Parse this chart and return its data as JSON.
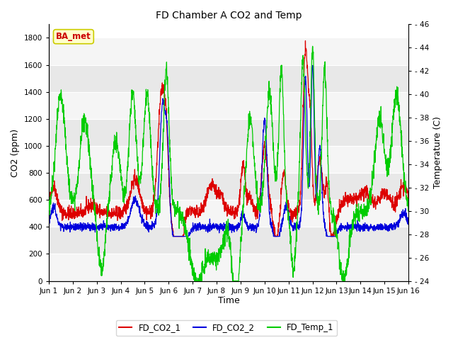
{
  "title": "FD Chamber A CO2 and Temp",
  "xlabel": "Time",
  "ylabel_left": "CO2 (ppm)",
  "ylabel_right": "Temperature (C)",
  "ylim_left": [
    0,
    1900
  ],
  "ylim_right": [
    24,
    46
  ],
  "yticks_left": [
    0,
    200,
    400,
    600,
    800,
    1000,
    1200,
    1400,
    1600,
    1800
  ],
  "yticks_right": [
    24,
    26,
    28,
    30,
    32,
    34,
    36,
    38,
    40,
    42,
    44,
    46
  ],
  "xlim": [
    0,
    15
  ],
  "xtick_positions": [
    0,
    1,
    2,
    3,
    4,
    5,
    6,
    7,
    8,
    9,
    10,
    11,
    12,
    13,
    14,
    15
  ],
  "xtick_labels": [
    "Jun 1",
    "Jun 2",
    "Jun 3",
    "Jun 4",
    "Jun 5",
    "Jun 6",
    "Jun 7",
    "Jun 8",
    "Jun 9",
    "Jun 10",
    "Jun 11",
    "Jun 12",
    "Jun 13",
    "Jun 14",
    "Jun 15",
    "Jun 16"
  ],
  "color_co2_1": "#dd0000",
  "color_co2_2": "#0000dd",
  "color_temp": "#00cc00",
  "legend_labels": [
    "FD_CO2_1",
    "FD_CO2_2",
    "FD_Temp_1"
  ],
  "badge_text": "BA_met",
  "badge_bg": "#ffffcc",
  "badge_border": "#cccc00",
  "badge_text_color": "#cc0000",
  "stripe_light": "#f5f5f5",
  "stripe_dark": "#e8e8e8",
  "seed": 42
}
